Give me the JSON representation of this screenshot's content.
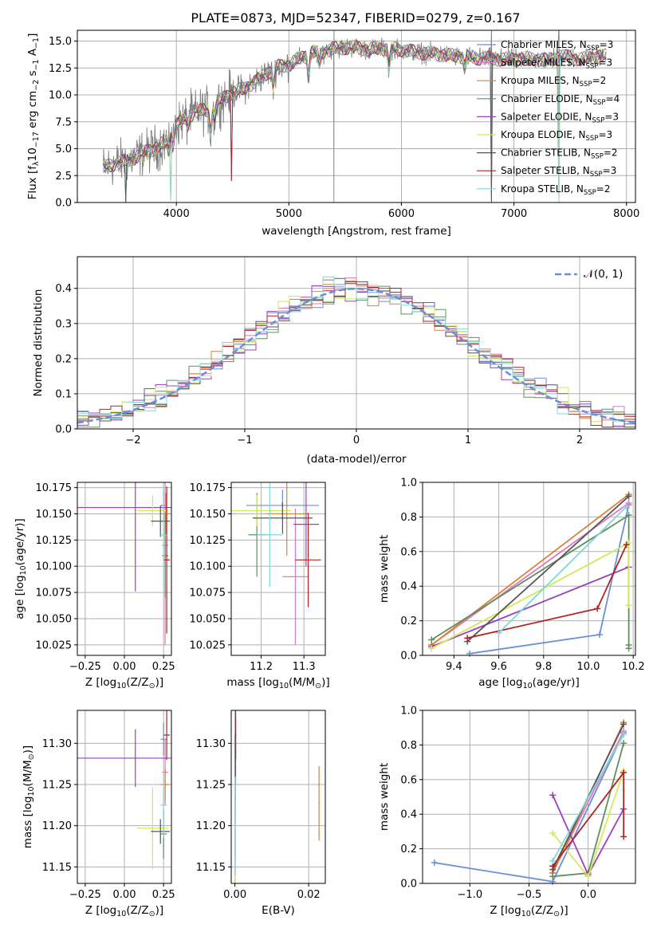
{
  "title": "PLATE=0873, MJD=52347, FIBERID=0279, z=0.167",
  "colors": {
    "Chabrier MILES": "#6a8ddc",
    "Salpeter MILES": "#e377c2",
    "Kroupa MILES": "#d9823b",
    "Chabrier ELODIE": "#5f8f5f",
    "Salpeter ELODIE": "#9b3fbf",
    "Kroupa ELODIE": "#d4e85a",
    "Chabrier STELIB": "#555555",
    "Salpeter STELIB": "#b22222",
    "Kroupa STELIB": "#7fd8d8",
    "gauss": "#6a8ddc"
  },
  "chart_data": [
    {
      "id": "spectrum",
      "type": "line",
      "title": "PLATE=0873, MJD=52347, FIBERID=0279, z=0.167",
      "xlabel": "wavelength [Angstrom, rest frame]",
      "ylabel_parts": [
        "Flux [f",
        "λ",
        "10",
        "−17",
        " erg cm",
        "−2",
        " s",
        "−1",
        " A",
        "−1",
        "]"
      ],
      "xlim": [
        3120,
        8080
      ],
      "ylim": [
        0,
        16
      ],
      "xticks": [
        "4000",
        "5000",
        "6000",
        "7000",
        "8000"
      ],
      "yticks": [
        "0.0",
        "2.5",
        "5.0",
        "7.5",
        "10.0",
        "12.5",
        "15.0"
      ],
      "legend_position": "top-right",
      "legend": [
        {
          "name": "Chabrier MILES, N",
          "sub": "SSP",
          "n": "=3"
        },
        {
          "name": "Salpeter MILES, N",
          "sub": "SSP",
          "n": "=3"
        },
        {
          "name": "Kroupa MILES, N",
          "sub": "SSP",
          "n": "=2"
        },
        {
          "name": "Chabrier ELODIE, N",
          "sub": "SSP",
          "n": "=4"
        },
        {
          "name": "Salpeter ELODIE, N",
          "sub": "SSP",
          "n": "=3"
        },
        {
          "name": "Kroupa ELODIE, N",
          "sub": "SSP",
          "n": "=3"
        },
        {
          "name": "Chabrier STELIB, N",
          "sub": "SSP",
          "n": "=2"
        },
        {
          "name": "Salpeter STELIB, N",
          "sub": "SSP",
          "n": "=3"
        },
        {
          "name": "Kroupa STELIB, N",
          "sub": "SSP",
          "n": "=2"
        }
      ],
      "continuum": [
        [
          3350,
          3.2
        ],
        [
          3450,
          3.6
        ],
        [
          3600,
          4.0
        ],
        [
          3700,
          4.6
        ],
        [
          3800,
          5.0
        ],
        [
          3900,
          5.6
        ],
        [
          4000,
          7.2
        ],
        [
          4100,
          8.0
        ],
        [
          4200,
          8.5
        ],
        [
          4300,
          8.6
        ],
        [
          4400,
          9.6
        ],
        [
          4500,
          10.2
        ],
        [
          4600,
          10.6
        ],
        [
          4700,
          11.2
        ],
        [
          4800,
          12.0
        ],
        [
          4900,
          12.6
        ],
        [
          5000,
          12.8
        ],
        [
          5100,
          13.4
        ],
        [
          5200,
          13.9
        ],
        [
          5300,
          14.0
        ],
        [
          5400,
          14.3
        ],
        [
          5500,
          14.4
        ],
        [
          5600,
          14.4
        ],
        [
          5700,
          14.2
        ],
        [
          5800,
          14.3
        ],
        [
          5900,
          14.3
        ],
        [
          6000,
          14.2
        ],
        [
          6100,
          14.0
        ],
        [
          6200,
          13.9
        ],
        [
          6300,
          13.8
        ],
        [
          6400,
          13.7
        ],
        [
          6500,
          13.6
        ],
        [
          6600,
          13.5
        ],
        [
          6700,
          13.4
        ],
        [
          6800,
          13.4
        ],
        [
          6900,
          13.3
        ],
        [
          7000,
          13.3
        ],
        [
          7100,
          13.4
        ],
        [
          7200,
          13.3
        ],
        [
          7300,
          13.2
        ],
        [
          7400,
          13.6
        ],
        [
          7500,
          13.5
        ],
        [
          7600,
          13.3
        ],
        [
          7700,
          13.5
        ],
        [
          7800,
          13.6
        ]
      ],
      "absorption_lines": [
        [
          3934,
          0.5
        ],
        [
          3969,
          0.5
        ],
        [
          4102,
          0.3
        ],
        [
          4304,
          0.8
        ],
        [
          4340,
          0.4
        ],
        [
          4861,
          0.6
        ],
        [
          5175,
          0.8
        ],
        [
          5270,
          0.4
        ],
        [
          5890,
          0.7
        ],
        [
          6563,
          0.4
        ]
      ],
      "spikes": [
        5400,
        6800,
        7400
      ],
      "model_dropouts": [
        [
          3550,
          0.0
        ],
        [
          3950,
          0.2
        ],
        [
          4490,
          2.0
        ],
        [
          6800,
          0.0
        ],
        [
          7400,
          0.0
        ]
      ]
    },
    {
      "id": "residual-hist",
      "type": "histogram",
      "xlabel": "(data-model)/error",
      "ylabel": "Normed distribution",
      "xlim": [
        -2.5,
        2.5
      ],
      "ylim": [
        0,
        0.49
      ],
      "xticks": [
        "−2",
        "−1",
        "0",
        "1",
        "2"
      ],
      "yticks": [
        "0.0",
        "0.1",
        "0.2",
        "0.3",
        "0.4"
      ],
      "legend": [
        "𝒩(0, 1)"
      ],
      "bin_width": 0.1
    },
    {
      "id": "age-vs-Z",
      "type": "scatter",
      "xlabel_parts": [
        "Z [log",
        "10",
        "(Z/Z",
        "⊙",
        ")]"
      ],
      "ylabel_parts": [
        "age  [log",
        "10",
        "(age/yr)]"
      ],
      "xlim": [
        -0.3,
        0.3
      ],
      "ylim": [
        10.015,
        10.18
      ],
      "xticks": [
        "−0.25",
        "0.00",
        "0.25"
      ],
      "yticks": [
        "10.025",
        "10.050",
        "10.075",
        "10.100",
        "10.125",
        "10.150",
        "10.175"
      ],
      "points": [
        {
          "series": "Chabrier MILES",
          "x": 0.25,
          "y": 10.158,
          "xe": 0.02,
          "ye": 0.015
        },
        {
          "series": "Salpeter MILES",
          "x": 0.26,
          "y": 10.12,
          "xe": 0.02,
          "ye": 0.095
        },
        {
          "series": "Kroupa MILES",
          "x": 0.265,
          "y": 10.15,
          "xe": 0.03,
          "ye": 0.02
        },
        {
          "series": "Chabrier ELODIE",
          "x": 0.26,
          "y": 10.11,
          "xe": 0.02,
          "ye": 0.04
        },
        {
          "series": "Salpeter ELODIE",
          "x": 0.07,
          "y": 10.156,
          "xe": 0.37,
          "ye": 0.08
        },
        {
          "series": "Kroupa ELODIE",
          "x": 0.18,
          "y": 10.153,
          "xe": 0.1,
          "ye": 0.015
        },
        {
          "series": "Chabrier STELIB",
          "x": 0.23,
          "y": 10.143,
          "xe": 0.06,
          "ye": 0.015
        },
        {
          "series": "Salpeter STELIB",
          "x": 0.27,
          "y": 10.106,
          "xe": 0.02,
          "ye": 0.07
        },
        {
          "series": "Kroupa STELIB",
          "x": 0.25,
          "y": 10.13,
          "xe": 0.02,
          "ye": 0.05
        }
      ]
    },
    {
      "id": "age-vs-mass",
      "type": "scatter",
      "xlabel_parts": [
        "mass [log",
        "10",
        "(M/M",
        "⊙",
        ")]"
      ],
      "xlim": [
        11.13,
        11.35
      ],
      "ylim": [
        10.015,
        10.18
      ],
      "xticks": [
        "11.2",
        "11.3"
      ],
      "yticks": [
        "10.025",
        "10.050",
        "10.075",
        "10.100",
        "10.125",
        "10.150",
        "10.175"
      ],
      "points": [
        {
          "series": "Chabrier MILES",
          "x": 11.25,
          "y": 10.158,
          "xe": 0.085,
          "ye": 0.015
        },
        {
          "series": "Salpeter MILES",
          "x": 11.28,
          "y": 10.09,
          "xe": 0.03,
          "ye": 0.065
        },
        {
          "series": "Kroupa MILES",
          "x": 11.26,
          "y": 10.15,
          "xe": 0.05,
          "ye": 0.04
        },
        {
          "series": "Chabrier ELODIE",
          "x": 11.19,
          "y": 10.13,
          "xe": 0.02,
          "ye": 0.04
        },
        {
          "series": "Salpeter ELODIE",
          "x": 11.305,
          "y": 10.14,
          "xe": 0.03,
          "ye": 0.04
        },
        {
          "series": "Kroupa ELODIE",
          "x": 11.19,
          "y": 10.153,
          "xe": 0.08,
          "ye": 0.015
        },
        {
          "series": "Chabrier STELIB",
          "x": 11.25,
          "y": 10.146,
          "xe": 0.07,
          "ye": 0.015
        },
        {
          "series": "Salpeter STELIB",
          "x": 11.31,
          "y": 10.106,
          "xe": 0.03,
          "ye": 0.045
        },
        {
          "series": "Kroupa STELIB",
          "x": 11.22,
          "y": 10.13,
          "xe": 0.03,
          "ye": 0.05
        }
      ]
    },
    {
      "id": "massweight-vs-age",
      "type": "line",
      "xlabel_parts": [
        "age  [log",
        "10",
        "(age/yr)]"
      ],
      "ylabel": "mass weight",
      "xlim": [
        9.26,
        10.21
      ],
      "ylim": [
        0,
        1
      ],
      "xticks": [
        "9.4",
        "9.6",
        "9.8",
        "10.0",
        "10.2"
      ],
      "yticks": [
        "0.0",
        "0.2",
        "0.4",
        "0.6",
        "0.8",
        "1.0"
      ],
      "series": [
        {
          "name": "Chabrier MILES",
          "x": [
            9.47,
            10.05,
            10.18
          ],
          "y": [
            0.01,
            0.12,
            0.87
          ]
        },
        {
          "name": "Salpeter MILES",
          "x": [
            9.3,
            10.18
          ],
          "y": [
            0.06,
            0.88
          ]
        },
        {
          "name": "Kroupa MILES",
          "x": [
            9.3,
            10.18
          ],
          "y": [
            0.06,
            0.93
          ]
        },
        {
          "name": "Chabrier ELODIE",
          "x": [
            9.3,
            10.18,
            10.18,
            10.18
          ],
          "y": [
            0.09,
            0.81,
            0.04,
            0.06
          ]
        },
        {
          "name": "Salpeter ELODIE",
          "x": [
            9.3,
            10.18
          ],
          "y": [
            0.05,
            0.51
          ]
        },
        {
          "name": "Kroupa ELODIE",
          "x": [
            9.3,
            10.18,
            10.18
          ],
          "y": [
            0.04,
            0.65,
            0.29
          ]
        },
        {
          "name": "Chabrier STELIB",
          "x": [
            9.46,
            10.18
          ],
          "y": [
            0.08,
            0.92
          ]
        },
        {
          "name": "Salpeter STELIB",
          "x": [
            9.46,
            10.04,
            10.17
          ],
          "y": [
            0.1,
            0.27,
            0.64
          ]
        },
        {
          "name": "Kroupa STELIB",
          "x": [
            9.6,
            10.17
          ],
          "y": [
            0.13,
            0.86
          ]
        }
      ]
    },
    {
      "id": "mass-vs-Z",
      "type": "scatter",
      "xlabel_parts": [
        "Z [log",
        "10",
        "(Z/Z",
        "⊙",
        ")]"
      ],
      "ylabel_parts": [
        "mass [log",
        "10",
        "(M/M",
        "⊙",
        ")]"
      ],
      "xlim": [
        -0.3,
        0.3
      ],
      "ylim": [
        11.13,
        11.34
      ],
      "xticks": [
        "−0.25",
        "0.00",
        "0.25"
      ],
      "yticks": [
        "11.15",
        "11.20",
        "11.25",
        "11.30"
      ],
      "points": [
        {
          "series": "Chabrier MILES",
          "x": 0.25,
          "y": 11.305,
          "xe": 0.02,
          "ye": 0.02
        },
        {
          "series": "Salpeter MILES",
          "x": 0.26,
          "y": 11.265,
          "xe": 0.02,
          "ye": 0.04
        },
        {
          "series": "Kroupa MILES",
          "x": 0.26,
          "y": 11.25,
          "xe": 0.03,
          "ye": 0.02
        },
        {
          "series": "Chabrier ELODIE",
          "x": 0.25,
          "y": 11.19,
          "xe": 0.02,
          "ye": 0.03
        },
        {
          "series": "Salpeter ELODIE",
          "x": 0.07,
          "y": 11.282,
          "xe": 0.37,
          "ye": 0.035
        },
        {
          "series": "Kroupa ELODIE",
          "x": 0.18,
          "y": 11.197,
          "xe": 0.1,
          "ye": 0.05
        },
        {
          "series": "Chabrier STELIB",
          "x": 0.23,
          "y": 11.193,
          "xe": 0.06,
          "ye": 0.015
        },
        {
          "series": "Salpeter STELIB",
          "x": 0.27,
          "y": 11.31,
          "xe": 0.02,
          "ye": 0.03
        },
        {
          "series": "Kroupa STELIB",
          "x": 0.25,
          "y": 11.225,
          "xe": 0.02,
          "ye": 0.04
        }
      ]
    },
    {
      "id": "mass-vs-ebv",
      "type": "scatter",
      "xlabel": "E(B-V)",
      "xlim": [
        -0.001,
        0.0245
      ],
      "ylim": [
        11.13,
        11.34
      ],
      "xticks": [
        "0.00",
        "0.02"
      ],
      "yticks": [
        "11.15",
        "11.20",
        "11.25",
        "11.30"
      ],
      "points": [
        {
          "series": "Chabrier MILES",
          "x": 0.0002,
          "y": 11.29,
          "xe": 0.0002,
          "ye": 0.04
        },
        {
          "series": "Salpeter MILES",
          "x": 0.0001,
          "y": 11.3,
          "xe": 0.0001,
          "ye": 0.03
        },
        {
          "series": "Kroupa MILES",
          "x": 0.0228,
          "y": 11.227,
          "xe": 0.0002,
          "ye": 0.045
        },
        {
          "series": "Chabrier ELODIE",
          "x": 0.0001,
          "y": 11.2,
          "xe": 0.0001,
          "ye": 0.04
        },
        {
          "series": "Salpeter ELODIE",
          "x": 0.0001,
          "y": 11.26,
          "xe": 0.0001,
          "ye": 0.05
        },
        {
          "series": "Kroupa ELODIE",
          "x": 0.0001,
          "y": 11.18,
          "xe": 0.0001,
          "ye": 0.05
        },
        {
          "series": "Chabrier STELIB",
          "x": 0.0001,
          "y": 11.27,
          "xe": 0.0001,
          "ye": 0.04
        },
        {
          "series": "Salpeter STELIB",
          "x": 0.0002,
          "y": 11.31,
          "xe": 0.0002,
          "ye": 0.03
        },
        {
          "series": "Kroupa STELIB",
          "x": 0.0001,
          "y": 11.2,
          "xe": 0.0001,
          "ye": 0.06
        }
      ]
    },
    {
      "id": "massweight-vs-Z",
      "type": "line",
      "xlabel_parts": [
        "Z [log",
        "10",
        "(Z/Z",
        "⊙",
        ")]"
      ],
      "ylabel": "mass weight",
      "xlim": [
        -1.4,
        0.4
      ],
      "ylim": [
        0,
        1
      ],
      "xticks": [
        "−1.0",
        "−0.5",
        "0.0"
      ],
      "yticks": [
        "0.0",
        "0.2",
        "0.4",
        "0.6",
        "0.8",
        "1.0"
      ],
      "series": [
        {
          "name": "Chabrier MILES",
          "x": [
            -1.3,
            -0.3,
            0.3
          ],
          "y": [
            0.12,
            0.01,
            0.87
          ]
        },
        {
          "name": "Salpeter MILES",
          "x": [
            -0.3,
            0.3
          ],
          "y": [
            0.06,
            0.88
          ]
        },
        {
          "name": "Kroupa MILES",
          "x": [
            -0.3,
            0.3
          ],
          "y": [
            0.06,
            0.93
          ]
        },
        {
          "name": "Chabrier ELODIE",
          "x": [
            -0.3,
            0.0,
            0.3
          ],
          "y": [
            0.04,
            0.06,
            0.81
          ]
        },
        {
          "name": "Salpeter ELODIE",
          "x": [
            -0.3,
            0.0,
            0.3
          ],
          "y": [
            0.51,
            0.05,
            0.43
          ]
        },
        {
          "name": "Kroupa ELODIE",
          "x": [
            -0.3,
            0.0,
            0.3
          ],
          "y": [
            0.29,
            0.04,
            0.65
          ]
        },
        {
          "name": "Chabrier STELIB",
          "x": [
            -0.3,
            0.3
          ],
          "y": [
            0.08,
            0.92
          ]
        },
        {
          "name": "Salpeter STELIB",
          "x": [
            -0.3,
            0.3,
            0.3
          ],
          "y": [
            0.1,
            0.64,
            0.27
          ]
        },
        {
          "name": "Kroupa STELIB",
          "x": [
            -0.3,
            0.3
          ],
          "y": [
            0.13,
            0.86
          ]
        }
      ]
    }
  ]
}
